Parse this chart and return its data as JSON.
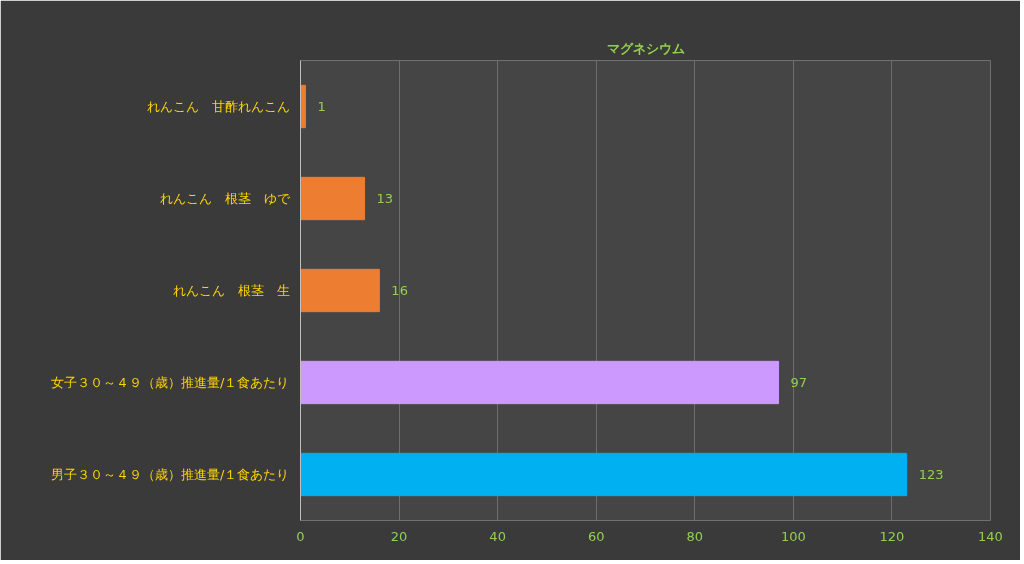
{
  "chart_data": {
    "type": "bar",
    "orientation": "horizontal",
    "title": "マグネシウム",
    "categories": [
      "れんこん　甘酢れんこん",
      "れんこん　根茎　ゆで",
      "れんこん　根茎　生",
      "女子３０～４９（歳）推進量/１食あたり",
      "男子３０～４９（歳）推進量/１食あたり"
    ],
    "values": [
      1,
      13,
      16,
      97,
      123
    ],
    "colors": [
      "#ed7d31",
      "#ed7d31",
      "#ed7d31",
      "#cc99ff",
      "#00b0f0"
    ],
    "xlim": [
      0,
      140
    ],
    "xticks": [
      0,
      20,
      40,
      60,
      80,
      100,
      120,
      140
    ],
    "grid": "x",
    "data_labels": true
  }
}
